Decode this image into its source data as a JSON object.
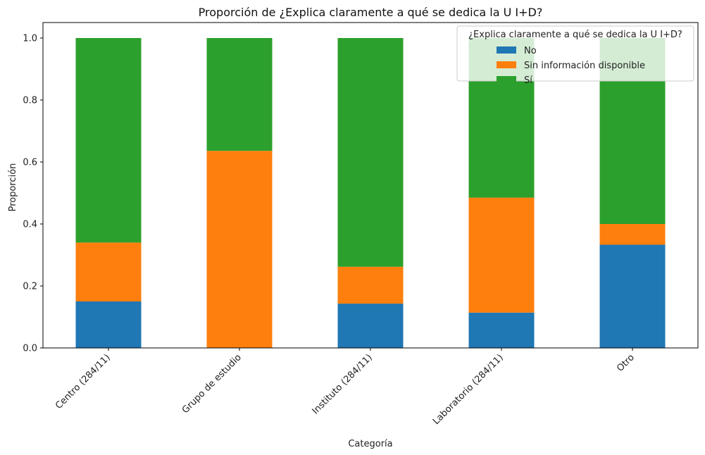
{
  "chart_data": {
    "type": "bar",
    "stacked": true,
    "title": "Proporción de ¿Explica claramente a qué se dedica la U I+D?",
    "xlabel": "Categoría",
    "ylabel": "Proporción",
    "ylim": [
      0,
      1.05
    ],
    "yticks": [
      "0.0",
      "0.2",
      "0.4",
      "0.6",
      "0.8",
      "1.0"
    ],
    "categories": [
      "Centro  (284/11)",
      "Grupo de estudio",
      "Instituto  (284/11)",
      "Laboratorio (284/11)",
      "Otro"
    ],
    "series": [
      {
        "name": "No",
        "color": "#1f77b4",
        "values": [
          0.15,
          0.0,
          0.143,
          0.114,
          0.333
        ]
      },
      {
        "name": "Sin información disponible",
        "color": "#ff7f0e",
        "values": [
          0.19,
          0.636,
          0.119,
          0.371,
          0.067
        ]
      },
      {
        "name": "Sí",
        "color": "#2ca02c",
        "values": [
          0.66,
          0.364,
          0.738,
          0.515,
          0.6
        ]
      }
    ],
    "legend": {
      "title": "¿Explica claramente a qué se dedica la U I+D?",
      "position": "top-right"
    },
    "grid": false
  }
}
